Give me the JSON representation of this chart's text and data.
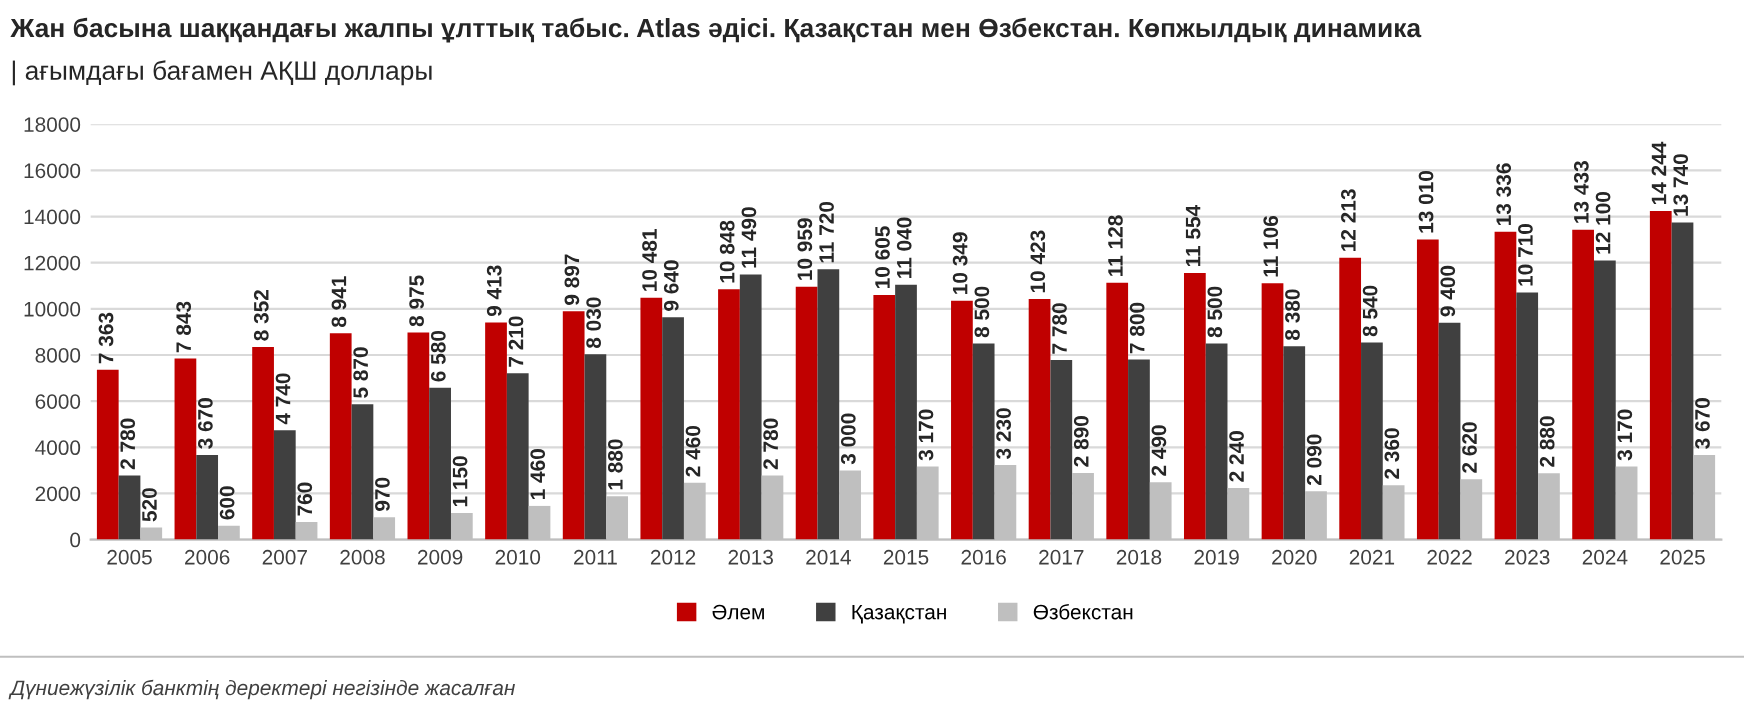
{
  "chart_data": {
    "type": "bar",
    "title": "Жан басына шаққандағы жалпы ұлттық табыс. Atlas әдісі. Қазақстан мен Өзбекстан. Көпжылдық динамика",
    "subtitle": "| ағымдағы бағамен АҚШ доллары",
    "categories": [
      "2005",
      "2006",
      "2007",
      "2008",
      "2009",
      "2010",
      "2011",
      "2012",
      "2013",
      "2014",
      "2015",
      "2016",
      "2017",
      "2018",
      "2019",
      "2020",
      "2021",
      "2022",
      "2023",
      "2024",
      "2025"
    ],
    "series": [
      {
        "name": "Әлем",
        "color": "#c00000",
        "values": [
          7363,
          7843,
          8352,
          8941,
          8975,
          9413,
          9897,
          10481,
          10848,
          10959,
          10605,
          10349,
          10423,
          11128,
          11554,
          11106,
          12213,
          13010,
          13336,
          13433,
          14244
        ],
        "value_labels": [
          "7 363",
          "7 843",
          "8 352",
          "8 941",
          "8 975",
          "9 413",
          "9 897",
          "10 481",
          "10 848",
          "10 959",
          "10 605",
          "10 349",
          "10 423",
          "11 128",
          "11 554",
          "11 106",
          "12 213",
          "13 010",
          "13 336",
          "13 433",
          "14 244"
        ]
      },
      {
        "name": "Қазақстан",
        "color": "#404040",
        "values": [
          2780,
          3670,
          4740,
          5870,
          6580,
          7210,
          8030,
          9640,
          11490,
          11720,
          11040,
          8500,
          7780,
          7800,
          8500,
          8380,
          8540,
          9400,
          10710,
          12100,
          13740
        ],
        "value_labels": [
          "2 780",
          "3 670",
          "4 740",
          "5 870",
          "6 580",
          "7 210",
          "8 030",
          "9 640",
          "11 490",
          "11 720",
          "11 040",
          "8 500",
          "7 780",
          "7 800",
          "8 500",
          "8 380",
          "8 540",
          "9 400",
          "10 710",
          "12 100",
          "13 740"
        ]
      },
      {
        "name": "Өзбекстан",
        "color": "#bfbfbf",
        "values": [
          520,
          600,
          760,
          970,
          1150,
          1460,
          1880,
          2460,
          2780,
          3000,
          3170,
          3230,
          2890,
          2490,
          2240,
          2090,
          2360,
          2620,
          2880,
          3170,
          3670
        ],
        "value_labels": [
          "520",
          "600",
          "760",
          "970",
          "1 150",
          "1 460",
          "1 880",
          "2 460",
          "2 780",
          "3 000",
          "3 170",
          "3 230",
          "2 890",
          "2 490",
          "2 240",
          "2 090",
          "2 360",
          "2 620",
          "2 880",
          "3 170",
          "3 670"
        ]
      }
    ],
    "ylim": [
      0,
      18000
    ],
    "yticks": [
      0,
      2000,
      4000,
      6000,
      8000,
      10000,
      12000,
      14000,
      16000,
      18000
    ],
    "grid": "y",
    "legend": "bottom",
    "annotations": [
      "Дүниежүзілік банктің деректері негізінде жасалған"
    ]
  }
}
